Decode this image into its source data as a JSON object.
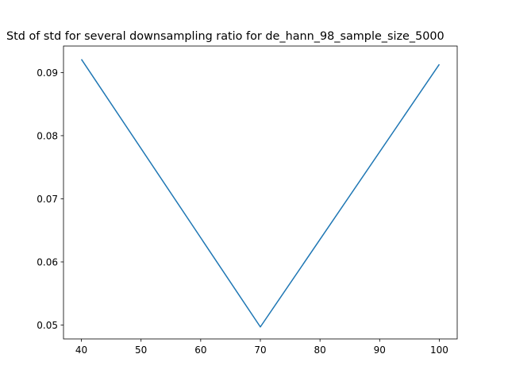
{
  "chart_data": {
    "type": "line",
    "title": "Std of std for several downsampling ratio for de_hann_98_sample_size_5000",
    "xlabel": "",
    "ylabel": "",
    "x": [
      40,
      70,
      100
    ],
    "series": [
      {
        "values": [
          0.0921,
          0.0497,
          0.0913
        ],
        "color": "#1f77b4"
      }
    ],
    "xlim": [
      37,
      103
    ],
    "ylim": [
      0.0478,
      0.0942
    ],
    "xticks": [
      40,
      50,
      60,
      70,
      80,
      90,
      100
    ],
    "xtick_labels": [
      "40",
      "50",
      "60",
      "70",
      "80",
      "90",
      "100"
    ],
    "yticks": [
      0.05,
      0.06,
      0.07,
      0.08,
      0.09
    ],
    "ytick_labels": [
      "0.05",
      "0.06",
      "0.07",
      "0.08",
      "0.09"
    ],
    "grid": false,
    "legend": "none"
  }
}
